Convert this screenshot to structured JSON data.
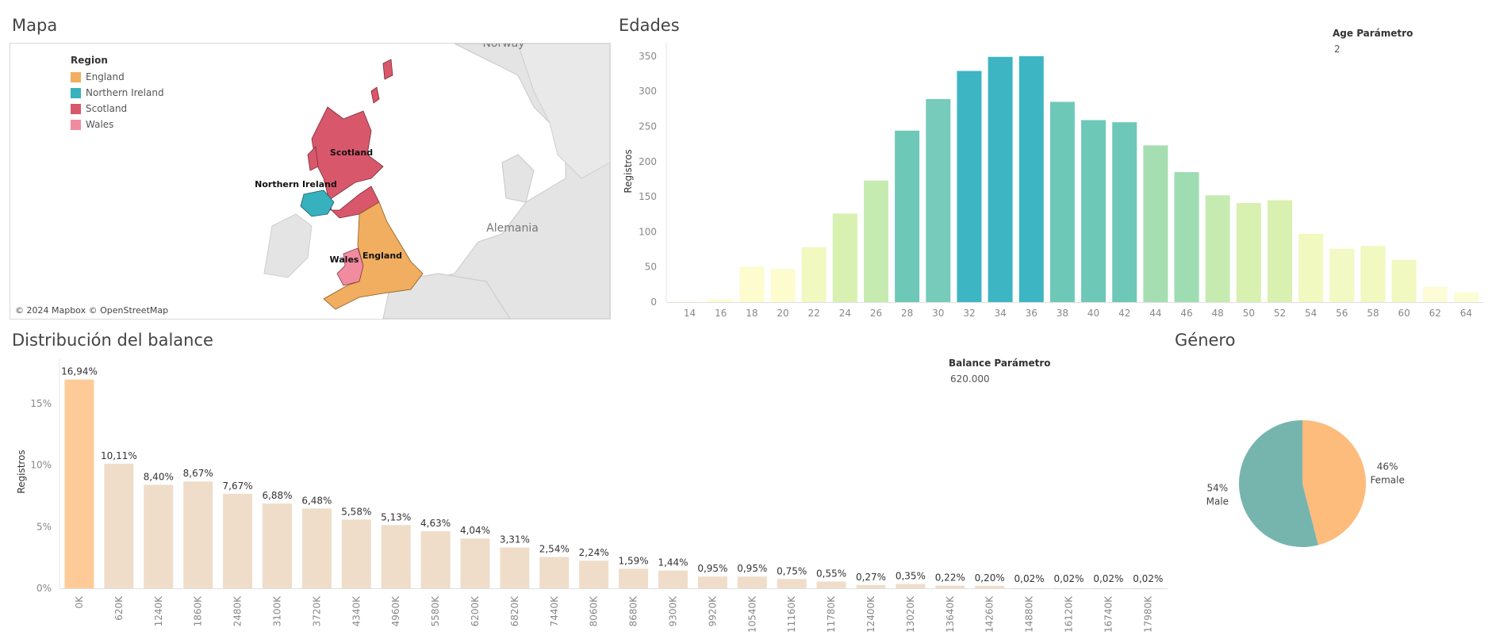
{
  "titles": {
    "map": "Mapa",
    "ages": "Edades",
    "balance": "Distribución del  balance",
    "gender": "Género"
  },
  "map": {
    "legend_title": "Region",
    "legend": [
      {
        "name": "England",
        "color": "#f1ae60"
      },
      {
        "name": "Northern Ireland",
        "color": "#37b1be"
      },
      {
        "name": "Scotland",
        "color": "#d9576b"
      },
      {
        "name": "Wales",
        "color": "#f08ba0"
      }
    ],
    "region_labels": {
      "scotland": "Scotland",
      "northern_ireland": "Northern Ireland",
      "wales": "Wales",
      "england": "England"
    },
    "place_labels": {
      "norway": "Norway",
      "germany": "Alemania"
    },
    "credit": "© 2024 Mapbox © OpenStreetMap"
  },
  "age_param": {
    "label": "Age Parámetro",
    "value": "2"
  },
  "balance_param": {
    "label": "Balance Parámetro",
    "value": "620.000"
  },
  "chart_data": [
    {
      "type": "bar",
      "title": "Edades",
      "xlabel": "",
      "ylabel": "Registros",
      "ylim": [
        0,
        360
      ],
      "yticks": [
        "0",
        "50",
        "100",
        "150",
        "200",
        "250",
        "300",
        "350"
      ],
      "categories": [
        "14",
        "16",
        "18",
        "20",
        "22",
        "24",
        "26",
        "28",
        "30",
        "32",
        "34",
        "36",
        "38",
        "40",
        "42",
        "44",
        "46",
        "48",
        "50",
        "52",
        "54",
        "56",
        "58",
        "60",
        "62",
        "64"
      ],
      "values": [
        1,
        4,
        50,
        47,
        78,
        126,
        173,
        244,
        289,
        329,
        349,
        350,
        285,
        259,
        256,
        223,
        185,
        152,
        141,
        145,
        97,
        76,
        80,
        60,
        22,
        14
      ],
      "colors": [
        "#fdfde0",
        "#fcfcd6",
        "#fcfcce",
        "#fcfcce",
        "#f1f8c0",
        "#d8f0b0",
        "#c6ebb0",
        "#6ec8b8",
        "#76cbba",
        "#3db5c3",
        "#3db5c3",
        "#3db5c3",
        "#6ec8b8",
        "#6ec8b8",
        "#6ec8b8",
        "#a5deb1",
        "#9edcb1",
        "#c6ebb0",
        "#d8f0b0",
        "#d8f0b0",
        "#f1f8c0",
        "#f3f9c4",
        "#f1f8c0",
        "#f1f8c0",
        "#fcfcd6",
        "#fcfcd6"
      ],
      "grid": false
    },
    {
      "type": "bar",
      "title": "Distribución del  balance",
      "xlabel": "",
      "ylabel": "Registros",
      "ylim": [
        0,
        17.5
      ],
      "yticks": [
        "0%",
        "5%",
        "10%",
        "15%"
      ],
      "categories": [
        "0K",
        "620K",
        "1240K",
        "1860K",
        "2480K",
        "3100K",
        "3720K",
        "4340K",
        "4960K",
        "5580K",
        "6200K",
        "6820K",
        "7440K",
        "8060K",
        "8680K",
        "9300K",
        "9920K",
        "10540K",
        "11160K",
        "11780K",
        "12400K",
        "13020K",
        "13640K",
        "14260K",
        "14880K",
        "16120K",
        "16740K",
        "17980K"
      ],
      "values": [
        16.94,
        10.11,
        8.4,
        8.67,
        7.67,
        6.88,
        6.48,
        5.58,
        5.13,
        4.63,
        4.04,
        3.31,
        2.54,
        2.24,
        1.59,
        1.44,
        0.95,
        0.95,
        0.75,
        0.55,
        0.27,
        0.35,
        0.22,
        0.2,
        0.02,
        0.02,
        0.02,
        0.02
      ],
      "data_labels": [
        "16,94%",
        "10,11%",
        "8,40%",
        "8,67%",
        "7,67%",
        "6,88%",
        "6,48%",
        "5,58%",
        "5,13%",
        "4,63%",
        "4,04%",
        "3,31%",
        "2,54%",
        "2,24%",
        "1,59%",
        "1,44%",
        "0,95%",
        "0,95%",
        "0,75%",
        "0,55%",
        "0,27%",
        "0,35%",
        "0,22%",
        "0,20%",
        "0,02%",
        "0,02%",
        "0,02%",
        "0,02%"
      ],
      "highlight_color": "#fecb98",
      "base_color": "#efddca",
      "grid": false
    },
    {
      "type": "pie",
      "title": "Género",
      "slices": [
        {
          "label": "Female",
          "value": 46,
          "pct_label": "46%",
          "color": "#fdbb7c"
        },
        {
          "label": "Male",
          "value": 54,
          "pct_label": "54%",
          "color": "#76b5ae"
        }
      ]
    }
  ]
}
